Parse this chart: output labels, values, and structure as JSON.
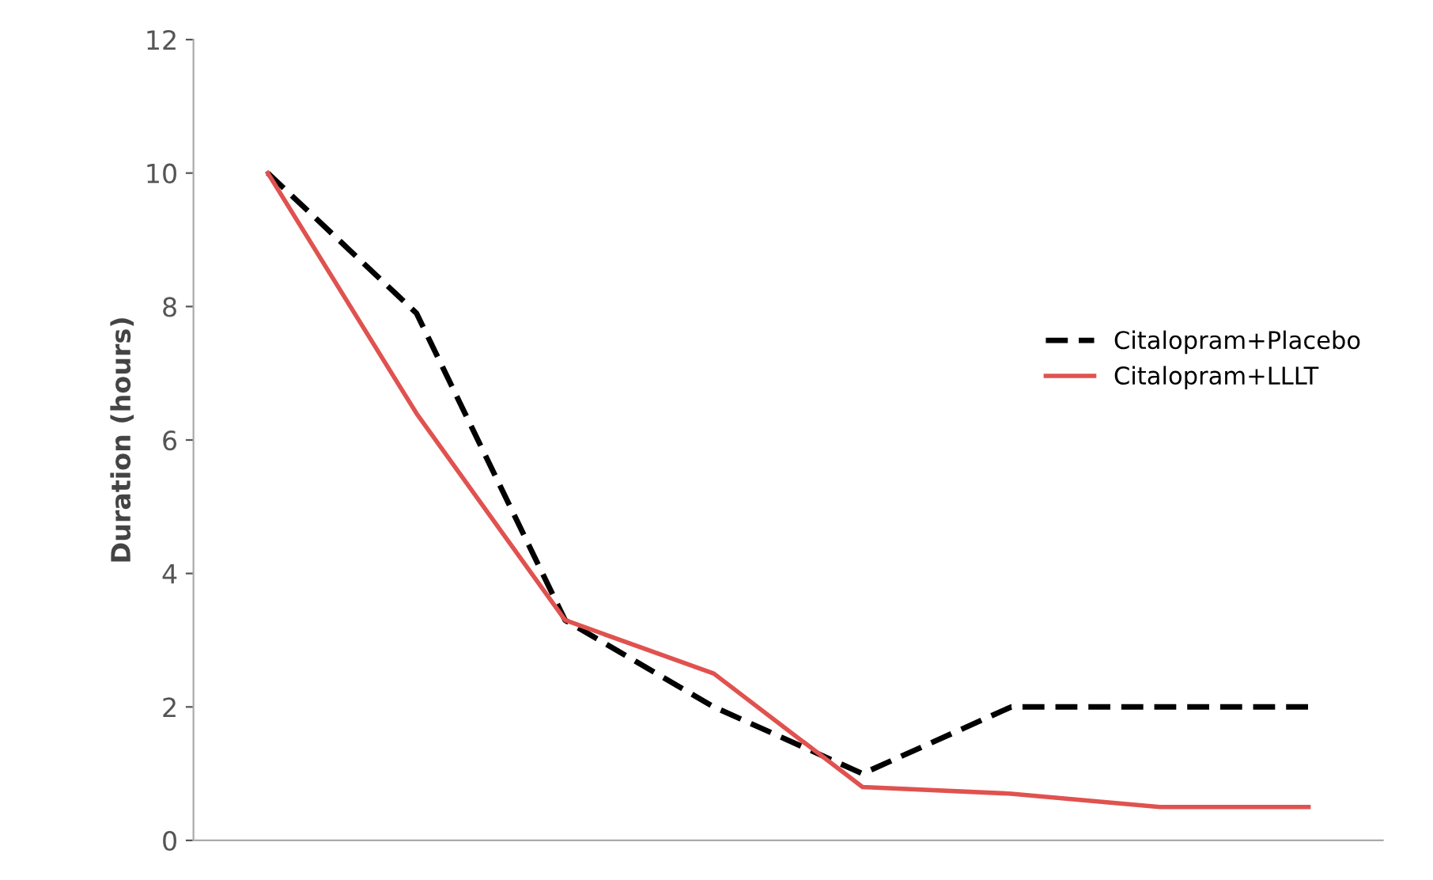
{
  "chart_data": {
    "type": "line",
    "ylabel": "Duration (hours)",
    "categories": [
      null,
      null,
      null,
      null,
      null,
      null,
      null,
      null
    ],
    "series": [
      {
        "name": "Citalopram+Placebo",
        "color": "#000000",
        "line_style": "dashed",
        "values": [
          10,
          7.9,
          3.3,
          2.0,
          1.0,
          2.0,
          2.0,
          2.0
        ]
      },
      {
        "name": "Citalopram+LLLT",
        "color": "#e0524f",
        "line_style": "solid",
        "values": [
          10,
          6.4,
          3.3,
          2.5,
          0.8,
          0.7,
          0.5,
          0.5
        ]
      }
    ],
    "ylim": [
      0,
      12
    ],
    "yticks": [
      0,
      2,
      4,
      6,
      8,
      10,
      12
    ],
    "grid": false,
    "legend": "right",
    "marker": "none"
  }
}
